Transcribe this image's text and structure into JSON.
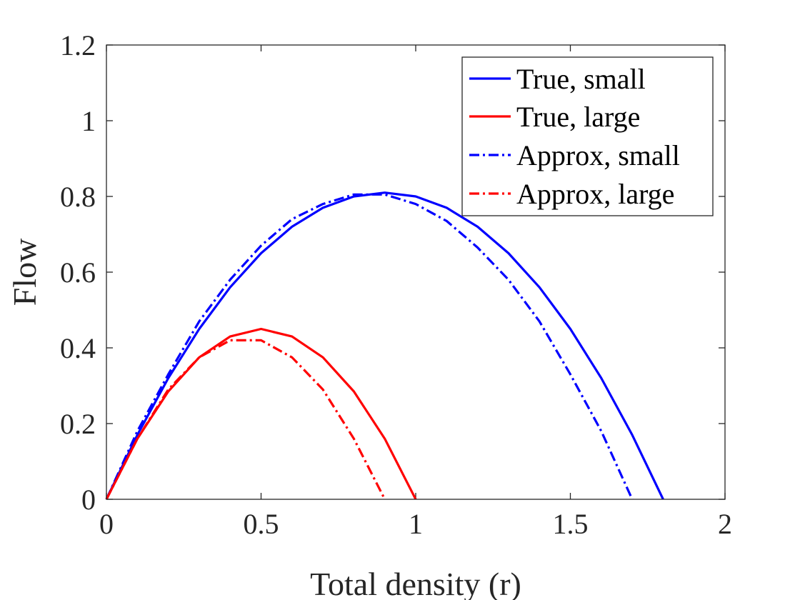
{
  "chart_data": {
    "type": "line",
    "title": "",
    "xlabel": "Total density (r)",
    "ylabel": "Flow",
    "xlim": [
      0,
      2
    ],
    "ylim": [
      0,
      1.2
    ],
    "xticks": [
      0,
      0.5,
      1,
      1.5,
      2
    ],
    "xtick_labels": [
      "0",
      "0.5",
      "1",
      "1.5",
      "2"
    ],
    "yticks": [
      0,
      0.2,
      0.4,
      0.6,
      0.8,
      1,
      1.2
    ],
    "ytick_labels": [
      "0",
      "0.2",
      "0.4",
      "0.6",
      "0.8",
      "1",
      "1.2"
    ],
    "grid": false,
    "legend_position": "top-right",
    "series": [
      {
        "name": "True, small",
        "color": "#0000ff",
        "dash": "solid",
        "x": [
          0,
          0.1,
          0.2,
          0.3,
          0.4,
          0.5,
          0.6,
          0.7,
          0.8,
          0.9,
          1.0,
          1.1,
          1.2,
          1.3,
          1.4,
          1.5,
          1.6,
          1.7,
          1.8
        ],
        "y": [
          0,
          0.17,
          0.32,
          0.45,
          0.56,
          0.65,
          0.72,
          0.77,
          0.8,
          0.81,
          0.8,
          0.77,
          0.72,
          0.65,
          0.56,
          0.45,
          0.32,
          0.17,
          0
        ]
      },
      {
        "name": "True, large",
        "color": "#ff0000",
        "dash": "solid",
        "x": [
          0,
          0.1,
          0.2,
          0.3,
          0.4,
          0.5,
          0.6,
          0.7,
          0.8,
          0.9,
          1.0
        ],
        "y": [
          0,
          0.16,
          0.285,
          0.375,
          0.43,
          0.45,
          0.43,
          0.375,
          0.285,
          0.16,
          0
        ]
      },
      {
        "name": "Approx, small",
        "color": "#0000ff",
        "dash": "dashdot",
        "x": [
          0,
          0.1,
          0.2,
          0.3,
          0.4,
          0.5,
          0.6,
          0.7,
          0.8,
          0.9,
          1.0,
          1.1,
          1.2,
          1.3,
          1.4,
          1.5,
          1.6,
          1.7
        ],
        "y": [
          0,
          0.18,
          0.33,
          0.47,
          0.58,
          0.67,
          0.74,
          0.78,
          0.805,
          0.805,
          0.78,
          0.735,
          0.665,
          0.58,
          0.47,
          0.33,
          0.18,
          0
        ]
      },
      {
        "name": "Approx, large",
        "color": "#ff0000",
        "dash": "dashdot",
        "x": [
          0,
          0.1,
          0.2,
          0.3,
          0.4,
          0.5,
          0.6,
          0.7,
          0.8,
          0.9
        ],
        "y": [
          0,
          0.16,
          0.29,
          0.375,
          0.42,
          0.42,
          0.375,
          0.29,
          0.16,
          0
        ]
      }
    ]
  }
}
